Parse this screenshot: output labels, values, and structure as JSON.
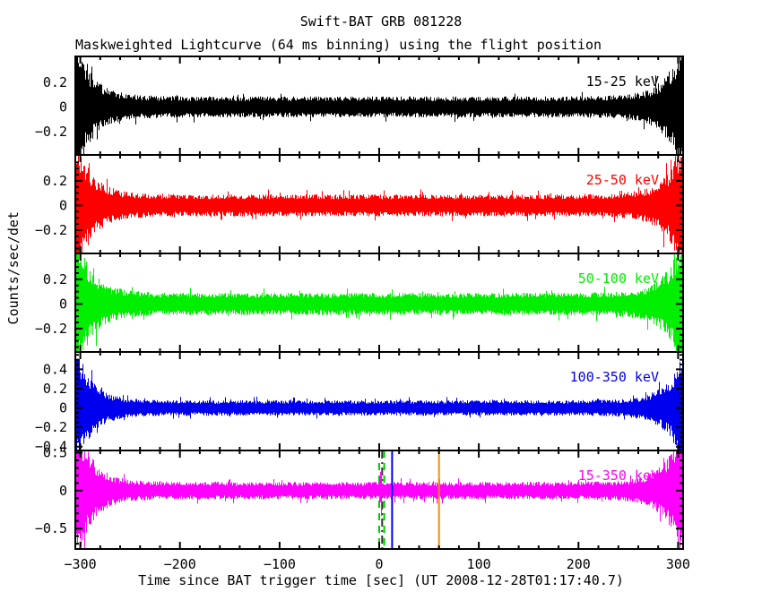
{
  "figure": {
    "title": "Swift-BAT GRB 081228",
    "subtitle": "Maskweighted Lightcurve (64 ms binning) using the flight position"
  },
  "chart_data": {
    "type": "line",
    "title": "Swift-BAT GRB 081228",
    "subtitle": "Maskweighted Lightcurve (64 ms binning) using the flight position",
    "xlabel": "Time since BAT trigger time [sec] (UT 2008-12-28T01:17:40.7)",
    "ylabel": "Counts/sec/det",
    "trigger_utc": "2008-12-28T01:17:40.7",
    "binning": "64 ms",
    "x_range": [
      -305,
      305
    ],
    "x_ticks": [
      -300,
      -200,
      -100,
      0,
      100,
      200,
      300
    ],
    "x_tick_labels": [
      "−300",
      "−200",
      "−100",
      "0",
      "100",
      "200",
      "300"
    ],
    "x_minor_step": 20,
    "grid": false,
    "legend_position": "top-right-inside-each-panel",
    "panels": [
      {
        "label": "15-25 keV",
        "color": "#000000",
        "ylim": [
          -0.39,
          0.41
        ],
        "yticks": [
          0.2,
          0,
          -0.2
        ],
        "ytick_labels": [
          "0.2",
          "0",
          "−0.2"
        ],
        "y_minor_step": 0.05,
        "noise_mid": 0.085,
        "noise_edge": 0.5,
        "baseline": 0
      },
      {
        "label": "25-50 keV",
        "color": "#ff0000",
        "ylim": [
          -0.39,
          0.41
        ],
        "yticks": [
          0.2,
          0,
          -0.2
        ],
        "ytick_labels": [
          "0.2",
          "0",
          "−0.2"
        ],
        "y_minor_step": 0.05,
        "noise_mid": 0.09,
        "noise_edge": 0.5,
        "baseline": 0
      },
      {
        "label": "50-100 keV",
        "color": "#00ee00",
        "ylim": [
          -0.39,
          0.41
        ],
        "yticks": [
          0.2,
          0,
          -0.2
        ],
        "ytick_labels": [
          "0.2",
          "0",
          "−0.2"
        ],
        "y_minor_step": 0.05,
        "noise_mid": 0.09,
        "noise_edge": 0.5,
        "baseline": 0
      },
      {
        "label": "100-350 keV",
        "color": "#0000ee",
        "ylim": [
          -0.44,
          0.58
        ],
        "yticks": [
          0.4,
          0.2,
          0,
          -0.2,
          -0.4
        ],
        "ytick_labels": [
          "0.4",
          "0.2",
          "0",
          "−0.2",
          "−0.4"
        ],
        "y_minor_step": 0.05,
        "noise_mid": 0.08,
        "noise_edge": 0.55,
        "baseline": 0
      },
      {
        "label": "15-350 keV",
        "color": "#ff00ff",
        "ylim": [
          -0.77,
          0.53
        ],
        "yticks": [
          0.5,
          0,
          -0.5
        ],
        "ytick_labels": [
          "0.5",
          "0",
          "−0.5"
        ],
        "y_minor_step": 0.1,
        "noise_mid": 0.115,
        "noise_edge": 0.9,
        "baseline": 0,
        "burst": {
          "t_start": -0.5,
          "t_end": 2.5,
          "factor": 2.3,
          "peak": 0.28
        }
      }
    ],
    "zero_line": {
      "style": "dashed",
      "color": "#000000",
      "from": -100,
      "to": 305
    },
    "markers": [
      {
        "t": 0,
        "color": "#00cc00",
        "style": "dashed",
        "layer": "under",
        "panel_label": "15-350 keV"
      },
      {
        "t": 3,
        "color": "#333333",
        "style": "dashdot",
        "layer": "under",
        "panel_label": "15-350 keV"
      },
      {
        "t": 5,
        "color": "#00cc00",
        "style": "dashed",
        "layer": "under",
        "panel_label": "15-350 keV"
      },
      {
        "t": 13,
        "color": "#0000ee",
        "style": "solid",
        "layer": "over",
        "panel_label": "15-350 keV"
      },
      {
        "t": 60,
        "color": "#ff8c00",
        "style": "solid",
        "layer": "over",
        "panel_label": "15-350 keV"
      }
    ],
    "noise_seed": 81228
  }
}
